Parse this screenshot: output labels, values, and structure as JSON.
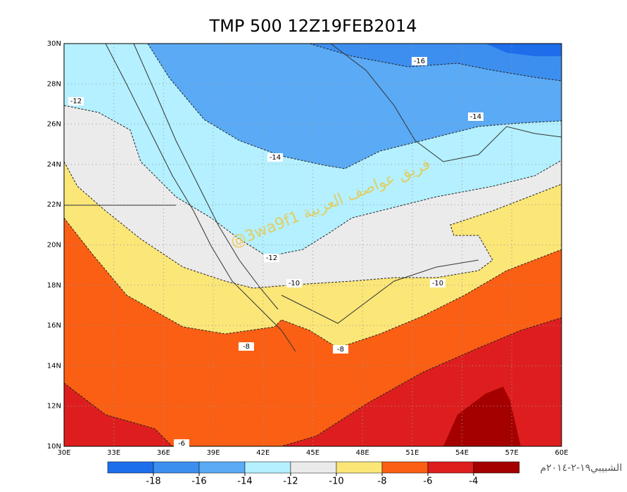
{
  "title": "TMP 500 12Z19FEB2014",
  "map": {
    "lat_ticks": [
      "10N",
      "12N",
      "14N",
      "16N",
      "18N",
      "20N",
      "22N",
      "24N",
      "26N",
      "28N",
      "30N"
    ],
    "lon_ticks": [
      "30E",
      "33E",
      "36E",
      "39E",
      "42E",
      "45E",
      "48E",
      "51E",
      "54E",
      "57E",
      "60E"
    ],
    "contour_labels": [
      "-16",
      "-12",
      "-14",
      "-14",
      "-12",
      "-10",
      "-10",
      "-8",
      "-8",
      "-6"
    ]
  },
  "colorbar": {
    "colors": [
      "#1e6eeb",
      "#3d8fef",
      "#5aaaf5",
      "#b4f0ff",
      "#ebebeb",
      "#fbe678",
      "#fa5f14",
      "#de1e1e",
      "#a50000"
    ],
    "ticks": [
      -18,
      -16,
      -14,
      -12,
      -10,
      -8,
      -6,
      -4
    ]
  },
  "watermark": "@3wa9f1 فريق عواصف العربية",
  "signature": "الشبيبي١٩-٢-٢٠١٤م"
}
